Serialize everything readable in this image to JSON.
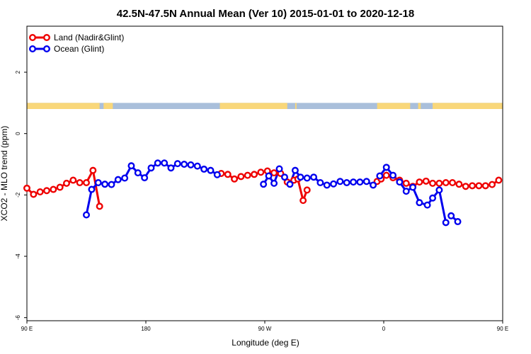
{
  "chart_data": {
    "type": "line",
    "title": "42.5N-47.5N Annual Mean (Ver 10)   2015-01-01 to 2020-12-18",
    "xlabel": "Longitude (deg E)",
    "ylabel": "XCO2 - MLO trend (ppm)",
    "xlim": [
      90,
      450
    ],
    "ylim": [
      -6.1,
      3.5
    ],
    "x_ticks": [
      {
        "value": 90,
        "label": "90 E"
      },
      {
        "value": 180,
        "label": "180"
      },
      {
        "value": 270,
        "label": "90 W"
      },
      {
        "value": 360,
        "label": "0"
      },
      {
        "value": 450,
        "label": "90 E"
      },
      {
        "value": 540,
        "label": "180"
      }
    ],
    "y_ticks": [
      {
        "value": 2,
        "label": "2"
      },
      {
        "value": 0,
        "label": "0"
      },
      {
        "value": -2,
        "label": "-2"
      },
      {
        "value": -4,
        "label": "-4"
      },
      {
        "value": -6,
        "label": "-6"
      }
    ],
    "legend_position": "top-left",
    "land_mask_band": {
      "y_range": [
        0.8,
        1.0
      ],
      "land_color": "#f9d77a",
      "ocean_color": "#a9bfdb",
      "land_segments": [
        [
          90,
          145
        ],
        [
          148,
          155
        ],
        [
          236,
          287
        ],
        [
          293,
          294
        ],
        [
          355,
          380
        ],
        [
          386,
          388
        ],
        [
          397,
          455
        ],
        [
          460,
          491
        ],
        [
          495,
          539
        ]
      ]
    },
    "series": [
      {
        "name": "Land (Nadir&Glint)",
        "color": "#ee0000",
        "segments": [
          [
            [
              90,
              -1.78
            ],
            [
              95,
              -1.98
            ],
            [
              100,
              -1.9
            ],
            [
              105,
              -1.86
            ],
            [
              110,
              -1.82
            ],
            [
              115,
              -1.75
            ],
            [
              120,
              -1.62
            ],
            [
              125,
              -1.52
            ],
            [
              130,
              -1.6
            ],
            [
              135,
              -1.6
            ],
            [
              140,
              -1.2
            ],
            [
              145,
              -2.37
            ]
          ],
          [
            [
              237,
              -1.3
            ],
            [
              242,
              -1.33
            ],
            [
              247,
              -1.48
            ],
            [
              252,
              -1.4
            ],
            [
              257,
              -1.36
            ],
            [
              262,
              -1.33
            ],
            [
              267,
              -1.26
            ],
            [
              272,
              -1.22
            ],
            [
              277,
              -1.28
            ],
            [
              282,
              -1.3
            ],
            [
              287,
              -1.58
            ],
            [
              292,
              -1.52
            ],
            [
              295,
              -1.48
            ],
            [
              299,
              -2.18
            ],
            [
              302,
              -1.84
            ]
          ],
          [
            [
              355,
              -1.56
            ],
            [
              358,
              -1.48
            ],
            [
              362,
              -1.36
            ],
            [
              367,
              -1.44
            ],
            [
              372,
              -1.52
            ],
            [
              377,
              -1.62
            ],
            [
              382,
              -1.72
            ],
            [
              387,
              -1.58
            ],
            [
              392,
              -1.55
            ],
            [
              397,
              -1.62
            ],
            [
              402,
              -1.62
            ],
            [
              407,
              -1.6
            ],
            [
              412,
              -1.6
            ],
            [
              417,
              -1.65
            ],
            [
              422,
              -1.72
            ],
            [
              427,
              -1.7
            ],
            [
              432,
              -1.7
            ],
            [
              437,
              -1.7
            ],
            [
              442,
              -1.66
            ],
            [
              447,
              -1.52
            ]
          ]
        ]
      },
      {
        "name": "Ocean (Glint)",
        "color": "#0000ee",
        "segments": [
          [
            [
              135,
              -2.65
            ],
            [
              139,
              -1.82
            ],
            [
              144,
              -1.6
            ],
            [
              149,
              -1.65
            ],
            [
              154,
              -1.66
            ],
            [
              159,
              -1.5
            ],
            [
              164,
              -1.45
            ],
            [
              169,
              -1.05
            ],
            [
              174,
              -1.28
            ],
            [
              179,
              -1.44
            ],
            [
              184,
              -1.12
            ],
            [
              189,
              -0.96
            ],
            [
              194,
              -0.96
            ],
            [
              199,
              -1.12
            ],
            [
              204,
              -0.98
            ],
            [
              209,
              -1.0
            ],
            [
              214,
              -1.02
            ],
            [
              219,
              -1.06
            ],
            [
              224,
              -1.16
            ],
            [
              229,
              -1.2
            ],
            [
              234,
              -1.34
            ]
          ],
          [
            [
              269,
              -1.65
            ],
            [
              273,
              -1.38
            ],
            [
              277,
              -1.62
            ],
            [
              281,
              -1.15
            ],
            [
              285,
              -1.42
            ],
            [
              289,
              -1.65
            ],
            [
              293,
              -1.2
            ],
            [
              297,
              -1.42
            ],
            [
              302,
              -1.45
            ],
            [
              307,
              -1.42
            ],
            [
              312,
              -1.6
            ],
            [
              317,
              -1.68
            ],
            [
              322,
              -1.64
            ],
            [
              327,
              -1.56
            ],
            [
              332,
              -1.6
            ],
            [
              337,
              -1.58
            ],
            [
              342,
              -1.58
            ],
            [
              347,
              -1.56
            ],
            [
              352,
              -1.68
            ],
            [
              357,
              -1.38
            ],
            [
              362,
              -1.1
            ],
            [
              367,
              -1.36
            ],
            [
              372,
              -1.58
            ],
            [
              377,
              -1.88
            ],
            [
              382,
              -1.75
            ],
            [
              387,
              -2.25
            ],
            [
              393,
              -2.33
            ],
            [
              397,
              -2.1
            ],
            [
              402,
              -1.84
            ],
            [
              407,
              -2.9
            ]
          ],
          [
            [
              411,
              -2.68
            ],
            [
              416,
              -2.87
            ]
          ]
        ]
      }
    ]
  }
}
